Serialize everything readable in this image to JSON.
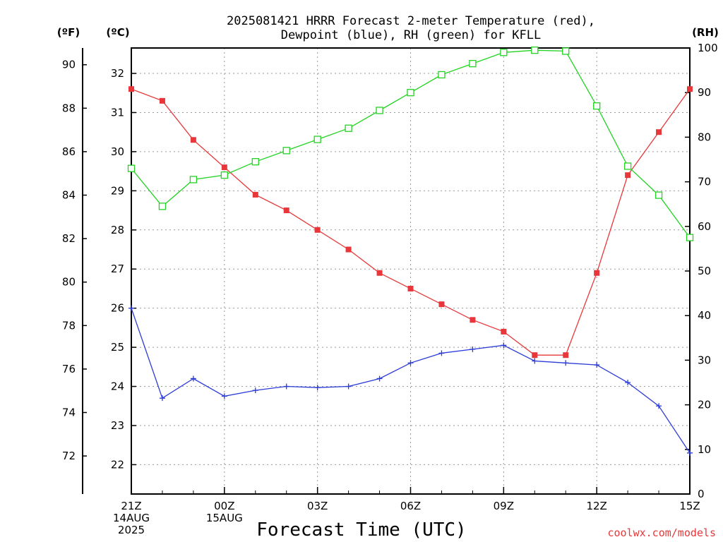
{
  "title_line1": "2025081421 HRRR Forecast 2-meter Temperature (red),",
  "title_line2": "Dewpoint (blue), RH (green) for KFLL",
  "unit_f": "(ºF)",
  "unit_c": "(ºC)",
  "unit_rh": "(RH)",
  "credit": "coolwx.com/models",
  "colors": {
    "temperature": "#e8373a",
    "dewpoint": "#2b3bd8",
    "rh": "#22d322"
  },
  "chart_data": {
    "type": "line",
    "title": "2025081421 HRRR Forecast 2-meter Temperature (red), Dewpoint (blue), RH (green) for KFLL",
    "xlabel": "Forecast Time (UTC)",
    "x": [
      0,
      1,
      2,
      3,
      4,
      5,
      6,
      7,
      8,
      9,
      10,
      11,
      12,
      13,
      14,
      15,
      16,
      17,
      18
    ],
    "xticks": [
      {
        "x": 0,
        "lines": [
          "21Z",
          "14AUG",
          "2025"
        ]
      },
      {
        "x": 3,
        "lines": [
          "00Z",
          "15AUG"
        ]
      },
      {
        "x": 6,
        "lines": [
          "03Z"
        ]
      },
      {
        "x": 9,
        "lines": [
          "06Z"
        ]
      },
      {
        "x": 12,
        "lines": [
          "09Z"
        ]
      },
      {
        "x": 15,
        "lines": [
          "12Z"
        ]
      },
      {
        "x": 18,
        "lines": [
          "15Z"
        ]
      }
    ],
    "xlim": [
      0,
      18
    ],
    "ylim_c": [
      21.25,
      32.65
    ],
    "yticks_c": [
      22,
      23,
      24,
      25,
      26,
      27,
      28,
      29,
      30,
      31,
      32
    ],
    "yticks_f": [
      72,
      74,
      76,
      78,
      80,
      82,
      84,
      86,
      88,
      90
    ],
    "ylim_rh": [
      0,
      100
    ],
    "yticks_rh": [
      0,
      10,
      20,
      30,
      40,
      50,
      60,
      70,
      80,
      90,
      100
    ],
    "grid": true,
    "series": [
      {
        "name": "Temperature",
        "axis": "c",
        "marker": "square-filled",
        "color": "#e8373a",
        "values": [
          31.6,
          31.3,
          30.3,
          29.6,
          28.9,
          28.5,
          28.0,
          27.5,
          26.9,
          26.5,
          26.1,
          25.7,
          25.4,
          24.8,
          24.8,
          26.9,
          29.4,
          30.5,
          31.6
        ]
      },
      {
        "name": "Dewpoint",
        "axis": "c",
        "marker": "plus",
        "color": "#2b3bd8",
        "values": [
          26.0,
          23.7,
          24.2,
          23.75,
          23.9,
          24.0,
          23.97,
          24.0,
          24.2,
          24.6,
          24.85,
          24.95,
          25.05,
          24.65,
          24.6,
          24.55,
          24.1,
          23.5,
          22.3
        ]
      },
      {
        "name": "RH",
        "axis": "rh",
        "marker": "square-open",
        "color": "#22d322",
        "values": [
          73,
          64.5,
          70.5,
          71.5,
          74.5,
          77,
          79.5,
          82,
          86,
          90,
          94,
          96.5,
          99,
          99.5,
          99.3,
          87,
          73.5,
          67,
          57.5
        ]
      }
    ]
  }
}
